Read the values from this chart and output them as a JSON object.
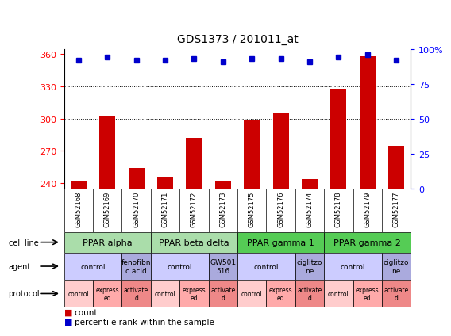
{
  "title": "GDS1373 / 201011_at",
  "samples": [
    "GSM52168",
    "GSM52169",
    "GSM52170",
    "GSM52171",
    "GSM52172",
    "GSM52173",
    "GSM52175",
    "GSM52176",
    "GSM52174",
    "GSM52178",
    "GSM52179",
    "GSM52177"
  ],
  "count_values": [
    242,
    303,
    254,
    246,
    282,
    242,
    298,
    305,
    244,
    328,
    358,
    275
  ],
  "percentile_values": [
    92,
    94,
    92,
    92,
    93,
    91,
    93,
    93,
    91,
    94,
    96,
    92
  ],
  "ylim_left": [
    235,
    365
  ],
  "ylim_right": [
    0,
    100
  ],
  "yticks_left": [
    240,
    270,
    300,
    330,
    360
  ],
  "yticks_right": [
    0,
    25,
    50,
    75,
    100
  ],
  "bar_color": "#cc0000",
  "dot_color": "#0000cc",
  "cell_line_groups": [
    {
      "label": "PPAR alpha",
      "start": 0,
      "end": 3,
      "color": "#aaddaa"
    },
    {
      "label": "PPAR beta delta",
      "start": 3,
      "end": 6,
      "color": "#aaddaa"
    },
    {
      "label": "PPAR gamma 1",
      "start": 6,
      "end": 9,
      "color": "#55cc55"
    },
    {
      "label": "PPAR gamma 2",
      "start": 9,
      "end": 12,
      "color": "#55cc55"
    }
  ],
  "agent_groups": [
    {
      "label": "control",
      "start": 0,
      "end": 2,
      "color": "#ccccff"
    },
    {
      "label": "fenofibn\nc acid",
      "start": 2,
      "end": 3,
      "color": "#aaaadd"
    },
    {
      "label": "control",
      "start": 3,
      "end": 5,
      "color": "#ccccff"
    },
    {
      "label": "GW501\n516",
      "start": 5,
      "end": 6,
      "color": "#aaaadd"
    },
    {
      "label": "control",
      "start": 6,
      "end": 8,
      "color": "#ccccff"
    },
    {
      "label": "ciglitzo\nne",
      "start": 8,
      "end": 9,
      "color": "#aaaadd"
    },
    {
      "label": "control",
      "start": 9,
      "end": 11,
      "color": "#ccccff"
    },
    {
      "label": "ciglitzo\nne",
      "start": 11,
      "end": 12,
      "color": "#aaaadd"
    }
  ],
  "protocol_groups": [
    {
      "label": "control",
      "start": 0,
      "end": 1,
      "color": "#ffcccc"
    },
    {
      "label": "express\ned",
      "start": 1,
      "end": 2,
      "color": "#ffaaaa"
    },
    {
      "label": "activate\nd",
      "start": 2,
      "end": 3,
      "color": "#ee8888"
    },
    {
      "label": "control",
      "start": 3,
      "end": 4,
      "color": "#ffcccc"
    },
    {
      "label": "express\ned",
      "start": 4,
      "end": 5,
      "color": "#ffaaaa"
    },
    {
      "label": "activate\nd",
      "start": 5,
      "end": 6,
      "color": "#ee8888"
    },
    {
      "label": "control",
      "start": 6,
      "end": 7,
      "color": "#ffcccc"
    },
    {
      "label": "express\ned",
      "start": 7,
      "end": 8,
      "color": "#ffaaaa"
    },
    {
      "label": "activate\nd",
      "start": 8,
      "end": 9,
      "color": "#ee8888"
    },
    {
      "label": "control",
      "start": 9,
      "end": 10,
      "color": "#ffcccc"
    },
    {
      "label": "express\ned",
      "start": 10,
      "end": 11,
      "color": "#ffaaaa"
    },
    {
      "label": "activate\nd",
      "start": 11,
      "end": 12,
      "color": "#ee8888"
    }
  ],
  "bg_color": "#ffffff",
  "tick_area_bg": "#cccccc",
  "row_labels": [
    "cell line",
    "agent",
    "protocol"
  ],
  "legend": [
    {
      "color": "#cc0000",
      "label": "count"
    },
    {
      "color": "#0000cc",
      "label": "percentile rank within the sample"
    }
  ]
}
